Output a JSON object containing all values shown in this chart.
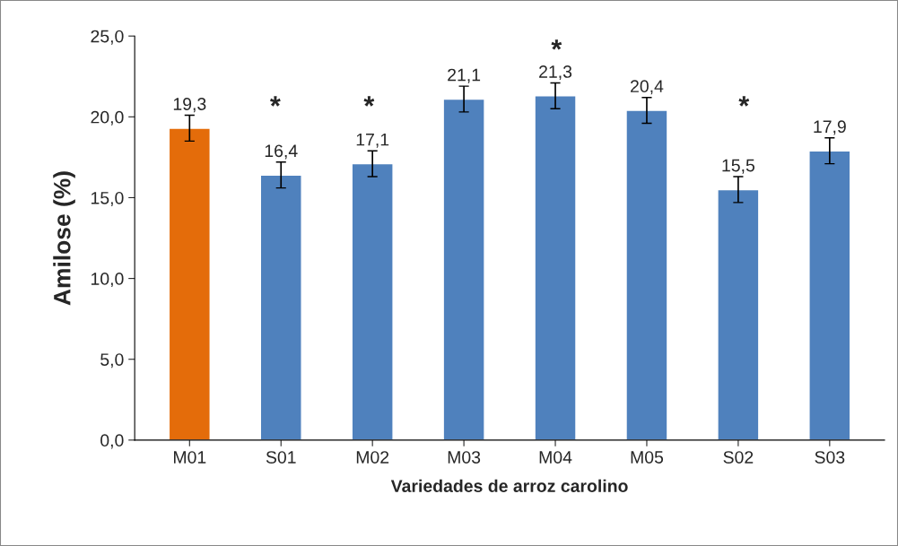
{
  "chart_data": {
    "type": "bar",
    "xlabel": "Variedades de arroz carolino",
    "ylabel": "Amilose (%)",
    "categories": [
      "M01",
      "S01",
      "M02",
      "M03",
      "M04",
      "M05",
      "S02",
      "S03"
    ],
    "values": [
      19.3,
      16.4,
      17.1,
      21.1,
      21.3,
      20.4,
      15.5,
      17.9
    ],
    "colors": [
      "#e46c0a",
      "#4f81bd",
      "#4f81bd",
      "#4f81bd",
      "#4f81bd",
      "#4f81bd",
      "#4f81bd",
      "#4f81bd"
    ],
    "errors": [
      0.8,
      0.8,
      0.8,
      0.8,
      0.8,
      0.8,
      0.8,
      0.8
    ],
    "value_labels": [
      "19,3",
      "16,4",
      "17,1",
      "21,1",
      "21,3",
      "20,4",
      "15,5",
      "17,9"
    ],
    "ylim": [
      0,
      25
    ],
    "yticks": [
      {
        "value": 0,
        "label": "0,0"
      },
      {
        "value": 5,
        "label": "5,0"
      },
      {
        "value": 10,
        "label": "10,0"
      },
      {
        "value": 15,
        "label": "15,0"
      },
      {
        "value": 20,
        "label": "20,0"
      },
      {
        "value": 25,
        "label": "25,0"
      }
    ],
    "annotations": [
      "*",
      "*",
      "*",
      "*"
    ],
    "grid": false,
    "legend": false
  }
}
